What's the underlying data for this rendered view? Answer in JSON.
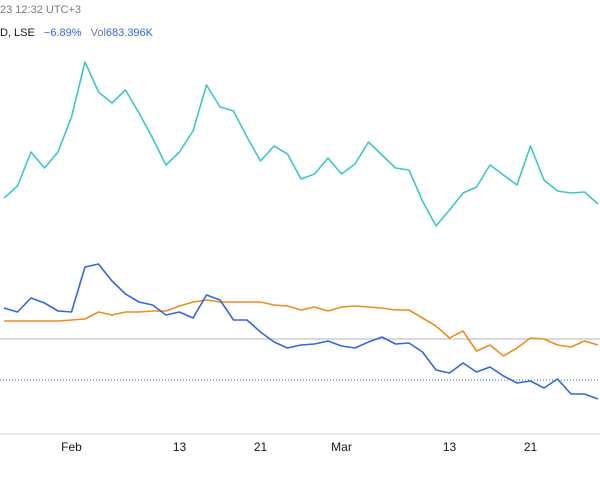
{
  "chart_data": {
    "type": "line",
    "header": "23 12:32 UTC+3",
    "legend_text": {
      "symbol": "D, LSE",
      "change": "−6.89%",
      "volume_label": "Vol",
      "volume": "683.396K"
    },
    "categories": [
      null,
      null,
      null,
      null,
      null,
      "Feb",
      null,
      null,
      null,
      null,
      null,
      null,
      null,
      "13",
      null,
      null,
      null,
      null,
      null,
      "21",
      null,
      null,
      null,
      null,
      null,
      "Mar",
      null,
      null,
      null,
      null,
      null,
      null,
      null,
      "13",
      null,
      null,
      null,
      null,
      null,
      "21",
      null,
      null,
      null,
      null,
      null
    ],
    "ylim": [
      0,
      487
    ],
    "series": [
      {
        "color": "#3ec7c9",
        "values": [
          289,
          301,
          335,
          319,
          335,
          370,
          425,
          395,
          384,
          397,
          374,
          349,
          322,
          335,
          356,
          402,
          380,
          376,
          350,
          326,
          341,
          333,
          308,
          313,
          329,
          313,
          323,
          345,
          332,
          319,
          317,
          286,
          261,
          277,
          294,
          300,
          322,
          312,
          302,
          341,
          307,
          296,
          294,
          295,
          283
        ]
      },
      {
        "color": "#f08c1e",
        "values": [
          166,
          166,
          166,
          166,
          166,
          167,
          168,
          175,
          172,
          175,
          175,
          176,
          176,
          181,
          185,
          187,
          185,
          185,
          185,
          185,
          182,
          181,
          177,
          180,
          176,
          180,
          181,
          180,
          179,
          177,
          177,
          169,
          161,
          149,
          156,
          136,
          142,
          131,
          139,
          149,
          148,
          142,
          140,
          146,
          142
        ]
      },
      {
        "color": "#3366e6",
        "values": [
          179,
          175,
          189,
          184,
          176,
          175,
          220,
          223,
          206,
          193,
          185,
          182,
          172,
          175,
          169,
          192,
          187,
          167,
          167,
          155,
          145,
          139,
          142,
          143,
          146,
          141,
          139,
          145,
          150,
          143,
          144,
          135,
          117,
          114,
          124,
          115,
          120,
          111,
          104,
          106,
          99,
          108,
          93,
          93,
          88
        ]
      }
    ],
    "reference_lines": [
      {
        "value": 148,
        "color": "#b2b5be",
        "dashed": false
      },
      {
        "value": 107,
        "color": "#3366e6",
        "dashed": true
      }
    ]
  }
}
